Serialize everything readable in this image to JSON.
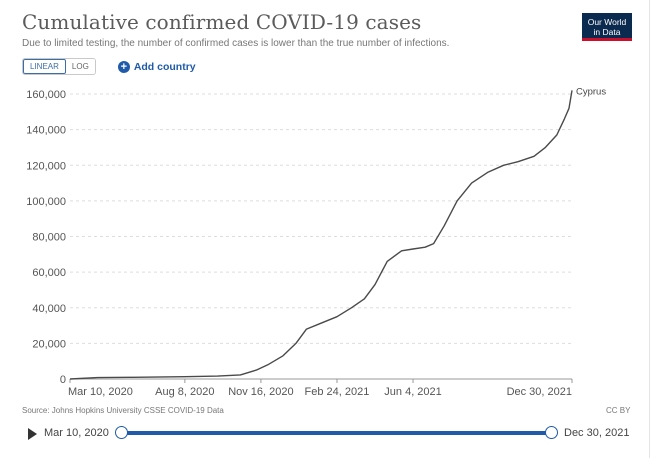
{
  "header": {
    "title": "Cumulative confirmed COVID-19 cases",
    "subtitle": "Due to limited testing, the number of confirmed cases is lower than the true number of infections.",
    "logo_line1": "Our World",
    "logo_line2": "in Data"
  },
  "controls": {
    "linear_label": "LINEAR",
    "log_label": "LOG",
    "add_country_label": "Add country"
  },
  "footer": {
    "source": "Source: Johns Hopkins University CSSE COVID-19 Data",
    "license": "CC BY"
  },
  "timeline": {
    "start_label": "Mar 10, 2020",
    "end_label": "Dec 30, 2021"
  },
  "colors": {
    "line": "#4a4a4a",
    "grid": "#dddddd",
    "accent": "#1f5ba8"
  },
  "chart_data": {
    "type": "line",
    "title": "Cumulative confirmed COVID-19 cases",
    "xlabel": "",
    "ylabel": "",
    "ylim": [
      0,
      160000
    ],
    "yticks": [
      0,
      20000,
      40000,
      60000,
      80000,
      100000,
      120000,
      140000,
      160000
    ],
    "ytick_labels": [
      "0",
      "20,000",
      "40,000",
      "60,000",
      "80,000",
      "100,000",
      "120,000",
      "140,000",
      "160,000"
    ],
    "xlim": [
      "2020-03-10",
      "2021-12-30"
    ],
    "xticks": [
      "2020-03-10",
      "2020-08-08",
      "2020-11-16",
      "2021-02-24",
      "2021-06-04",
      "2021-12-30"
    ],
    "xtick_labels": [
      "Mar 10, 2020",
      "Aug 8, 2020",
      "Nov 16, 2020",
      "Feb 24, 2021",
      "Jun 4, 2021",
      "Dec 30, 2021"
    ],
    "grid": true,
    "series": [
      {
        "name": "Cyprus",
        "x": [
          "2020-03-10",
          "2020-04-15",
          "2020-06-01",
          "2020-08-08",
          "2020-09-20",
          "2020-10-20",
          "2020-11-10",
          "2020-11-25",
          "2020-12-15",
          "2021-01-01",
          "2021-01-15",
          "2021-02-01",
          "2021-02-24",
          "2021-03-15",
          "2021-04-01",
          "2021-04-15",
          "2021-05-01",
          "2021-05-20",
          "2021-06-04",
          "2021-06-20",
          "2021-07-01",
          "2021-07-15",
          "2021-08-01",
          "2021-08-20",
          "2021-09-10",
          "2021-10-01",
          "2021-10-20",
          "2021-11-10",
          "2021-11-25",
          "2021-12-10",
          "2021-12-20",
          "2021-12-26",
          "2021-12-30"
        ],
        "y": [
          0,
          800,
          950,
          1300,
          1600,
          2300,
          5000,
          8000,
          13000,
          20000,
          28000,
          31000,
          35000,
          40000,
          45000,
          53000,
          66000,
          72000,
          73000,
          74000,
          76000,
          86000,
          100000,
          110000,
          116000,
          120000,
          122000,
          125000,
          130000,
          137000,
          146000,
          152000,
          162000
        ]
      }
    ]
  }
}
